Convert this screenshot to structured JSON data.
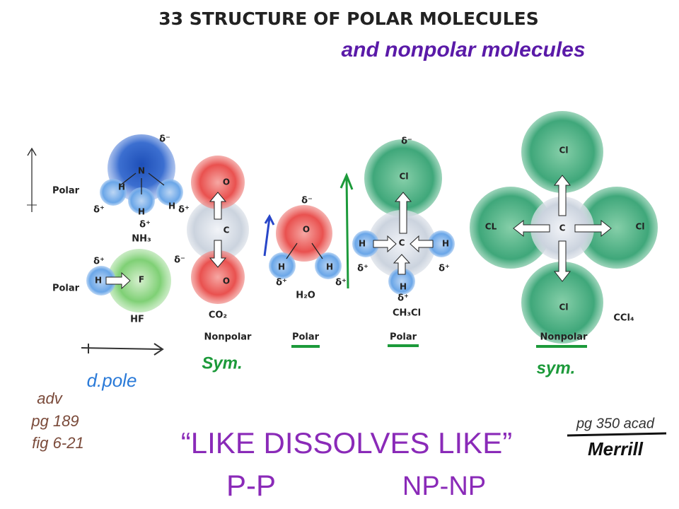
{
  "title": "33  STRUCTURE OF POLAR MOLECULES",
  "subtitle_handwritten": "and nonpolar molecules",
  "row_labels": [
    "Polar",
    "Polar"
  ],
  "molecules": [
    {
      "formula": "NH₃",
      "atoms": [
        "N",
        "H",
        "H",
        "H"
      ],
      "charges": [
        "δ⁻",
        "δ⁺",
        "δ⁺",
        "δ⁺"
      ]
    },
    {
      "formula": "HF",
      "atoms": [
        "H",
        "F"
      ],
      "charges": [
        "δ⁺",
        "δ⁻"
      ]
    },
    {
      "formula": "CO₂",
      "atoms": [
        "O",
        "C",
        "O"
      ],
      "classification": "Nonpolar"
    },
    {
      "formula": "H₂O",
      "atoms": [
        "O",
        "H",
        "H"
      ],
      "charges": [
        "δ⁻",
        "δ⁺",
        "δ⁺"
      ],
      "classification": "Polar"
    },
    {
      "formula": "CH₃Cl",
      "atoms": [
        "Cl",
        "C",
        "H",
        "H",
        "H"
      ],
      "charges": [
        "δ⁻",
        "δ⁺",
        "δ⁺",
        "δ⁺"
      ],
      "classification": "Polar"
    },
    {
      "formula": "CCl₄",
      "atoms": [
        "Cl",
        "CL",
        "C",
        "Cl",
        "Cl"
      ],
      "classification": "Nonpolar"
    }
  ],
  "annotations": {
    "sym_left": "Sym.",
    "sym_right": "sym.",
    "dipole": "d.pole",
    "reference_left": [
      "adv",
      "pg 189",
      "fig 6-21"
    ],
    "slogan": "“LIKE DISSOLVES LIKE”",
    "pairs": [
      "P-P",
      "NP-NP"
    ],
    "reference_right": [
      "pg 350 acad",
      "Merrill"
    ]
  }
}
